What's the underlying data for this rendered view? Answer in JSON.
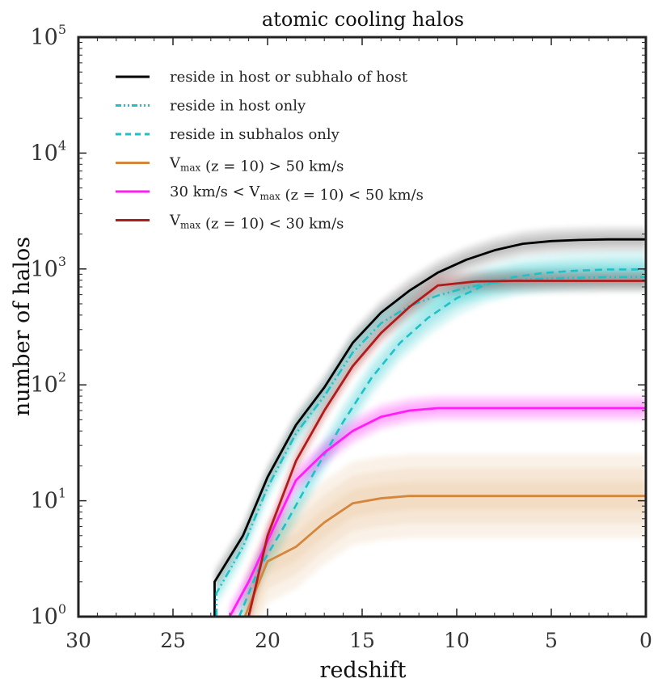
{
  "colors": {
    "black": "#000000",
    "cyan": "#1fc1c8",
    "orange": "#d4873c",
    "magenta": "#ff1ef5",
    "red": "#b01c1c"
  },
  "chart_data": {
    "type": "line",
    "title": "atomic cooling halos",
    "xlabel": "redshift",
    "ylabel": "number of halos",
    "xlim": [
      30,
      0
    ],
    "ylim": [
      1,
      100000
    ],
    "yscale": "log",
    "grid": false,
    "x_ticks": [
      {
        "value": 30,
        "label": "30"
      },
      {
        "value": 25,
        "label": "25"
      },
      {
        "value": 20,
        "label": "20"
      },
      {
        "value": 15,
        "label": "15"
      },
      {
        "value": 10,
        "label": "10"
      },
      {
        "value": 5,
        "label": "5"
      },
      {
        "value": 0,
        "label": "0"
      }
    ],
    "y_ticks": [
      {
        "value": 1,
        "base": "10",
        "exp": "0"
      },
      {
        "value": 10,
        "base": "10",
        "exp": "1"
      },
      {
        "value": 100,
        "base": "10",
        "exp": "2"
      },
      {
        "value": 1000,
        "base": "10",
        "exp": "3"
      },
      {
        "value": 10000,
        "base": "10",
        "exp": "4"
      },
      {
        "value": 100000,
        "base": "10",
        "exp": "5"
      }
    ],
    "legend_position": "top-left",
    "series": [
      {
        "id": "host-or-sub",
        "name": "reside in host or subhalo of host",
        "legend_parts": [
          {
            "t": "reside in host or subhalo of host"
          }
        ],
        "color": "#000000",
        "style": "solid",
        "band_factor": 1.3,
        "band_opacity": 0.09,
        "x": [
          22.8,
          22.8,
          21.3,
          20.0,
          18.5,
          17.0,
          15.5,
          14.0,
          12.5,
          11.0,
          9.5,
          8.0,
          6.5,
          5.0,
          3.5,
          2.0,
          0.0
        ],
        "y": [
          1.0,
          2.0,
          5.0,
          16,
          45,
          95,
          230,
          420,
          650,
          930,
          1200,
          1450,
          1650,
          1740,
          1780,
          1800,
          1800
        ]
      },
      {
        "id": "host-only",
        "name": "reside in host only",
        "legend_parts": [
          {
            "t": "reside in host only"
          }
        ],
        "color": "#1fc1c8",
        "style": "dashdot",
        "band_factor": 1.35,
        "band_opacity": 0.1,
        "x": [
          22.7,
          22.7,
          21.3,
          20.0,
          18.5,
          17.0,
          15.5,
          14.0,
          12.5,
          11.0,
          9.5,
          8.0,
          6.5,
          5.0,
          3.5,
          2.0,
          0.0
        ],
        "y": [
          1.0,
          1.6,
          4.0,
          13,
          38,
          80,
          190,
          340,
          480,
          590,
          690,
          760,
          810,
          830,
          840,
          850,
          850
        ]
      },
      {
        "id": "subhalos-only",
        "name": "reside in subhalos only",
        "legend_parts": [
          {
            "t": "reside in subhalos only"
          }
        ],
        "color": "#1fc1c8",
        "style": "dashed",
        "band_factor": 1.45,
        "band_opacity": 0.12,
        "x": [
          21.5,
          20.5,
          19.0,
          17.5,
          16.0,
          14.5,
          13.0,
          11.5,
          10.0,
          8.5,
          7.0,
          5.5,
          4.0,
          2.0,
          0.0
        ],
        "y": [
          1.0,
          2.5,
          6.5,
          18,
          48,
          115,
          230,
          380,
          560,
          730,
          850,
          920,
          960,
          990,
          990
        ]
      },
      {
        "id": "vmax-gt-50",
        "name": "Vmax (z = 10) > 50 km/s",
        "legend_parts": [
          {
            "t": "V"
          },
          {
            "sub": "max"
          },
          {
            "t": " (z = 10)  >  50 km/s"
          }
        ],
        "color": "#d4873c",
        "style": "solid",
        "band_factor": 2.3,
        "band_opacity": 0.11,
        "x": [
          21.2,
          20.0,
          18.5,
          17.0,
          15.5,
          14.0,
          12.5,
          11.0,
          9.0,
          7.0,
          5.0,
          3.0,
          0.0
        ],
        "y": [
          1.0,
          3.0,
          4.0,
          6.5,
          9.5,
          10.5,
          11.0,
          11.0,
          11.0,
          11.0,
          11.0,
          11.0,
          11.0
        ]
      },
      {
        "id": "vmax-30-50",
        "name": "30 km/s < Vmax (z = 10) < 50 km/s",
        "legend_parts": [
          {
            "t": "30 km/s  <  V"
          },
          {
            "sub": "max"
          },
          {
            "t": " (z = 10)  <  50 km/s"
          }
        ],
        "color": "#ff1ef5",
        "style": "solid",
        "band_factor": 1.3,
        "band_opacity": 0.13,
        "x": [
          22.0,
          21.0,
          20.0,
          18.5,
          17.0,
          15.5,
          14.0,
          12.5,
          11.0,
          9.0,
          7.0,
          5.0,
          3.0,
          0.0
        ],
        "y": [
          1.0,
          2.0,
          4.5,
          15,
          26,
          40,
          53,
          60,
          63,
          63,
          63,
          63,
          63,
          63
        ]
      },
      {
        "id": "vmax-lt-30",
        "name": "Vmax (z = 10) < 30 km/s",
        "legend_parts": [
          {
            "t": "V"
          },
          {
            "sub": "max"
          },
          {
            "t": " (z = 10)  <  30 km/s"
          }
        ],
        "color": "#b01c1c",
        "style": "solid",
        "band_factor": 1.25,
        "band_opacity": 0.11,
        "x": [
          21.0,
          20.0,
          18.5,
          17.0,
          15.5,
          14.0,
          12.5,
          11.0,
          9.0,
          7.0,
          5.0,
          3.0,
          0.0
        ],
        "y": [
          1.0,
          5.0,
          22,
          60,
          145,
          280,
          470,
          720,
          780,
          790,
          790,
          790,
          790
        ]
      }
    ]
  }
}
